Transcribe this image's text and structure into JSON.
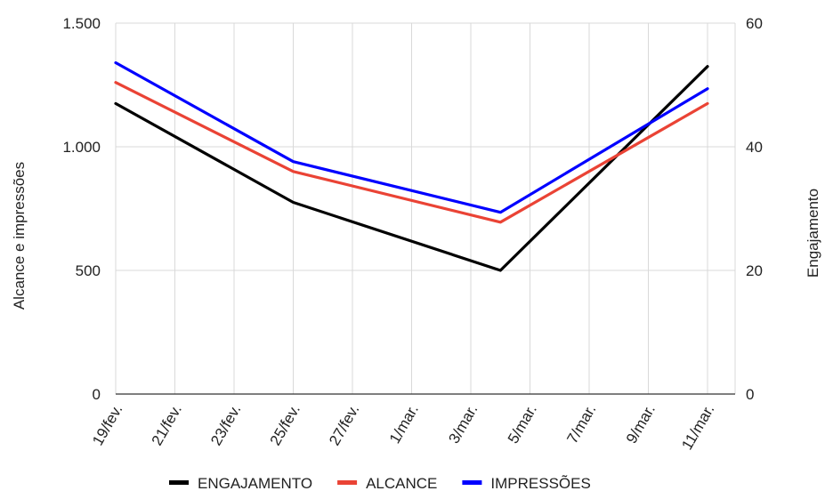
{
  "chart_data": {
    "type": "line",
    "x": [
      "19/fev.",
      "21/fev.",
      "23/fev.",
      "25/fev.",
      "27/fev.",
      "1/mar.",
      "3/mar.",
      "5/mar.",
      "7/mar.",
      "9/mar.",
      "11/mar."
    ],
    "left_axis": {
      "title": "Alcance e impressões",
      "ylim": [
        0,
        1500
      ],
      "ticks": [
        0,
        500,
        1000,
        1500
      ],
      "tick_labels": [
        "0",
        "500",
        "1.000",
        "1.500"
      ]
    },
    "right_axis": {
      "title": "Engajamento",
      "ylim": [
        0,
        60
      ],
      "ticks": [
        0,
        20,
        40,
        60
      ],
      "tick_labels": [
        "0",
        "20",
        "40",
        "60"
      ]
    },
    "series": [
      {
        "name": "ENGAJAMENTO",
        "color": "#000000",
        "axis": "right",
        "points": [
          [
            "19/fev.",
            47
          ],
          [
            "25/fev.",
            31
          ],
          [
            "4/mar.",
            20
          ],
          [
            "11/mar.",
            53
          ]
        ]
      },
      {
        "name": "ALCANCE",
        "color": "#ea4335",
        "axis": "left",
        "points": [
          [
            "19/fev.",
            1260
          ],
          [
            "25/fev.",
            900
          ],
          [
            "4/mar.",
            695
          ],
          [
            "11/mar.",
            1175
          ]
        ]
      },
      {
        "name": "IMPRESSÕES",
        "color": "#0000ff",
        "axis": "left",
        "points": [
          [
            "19/fev.",
            1340
          ],
          [
            "25/fev.",
            940
          ],
          [
            "4/mar.",
            735
          ],
          [
            "11/mar.",
            1235
          ]
        ]
      }
    ],
    "grid": true,
    "legend_position": "bottom"
  }
}
